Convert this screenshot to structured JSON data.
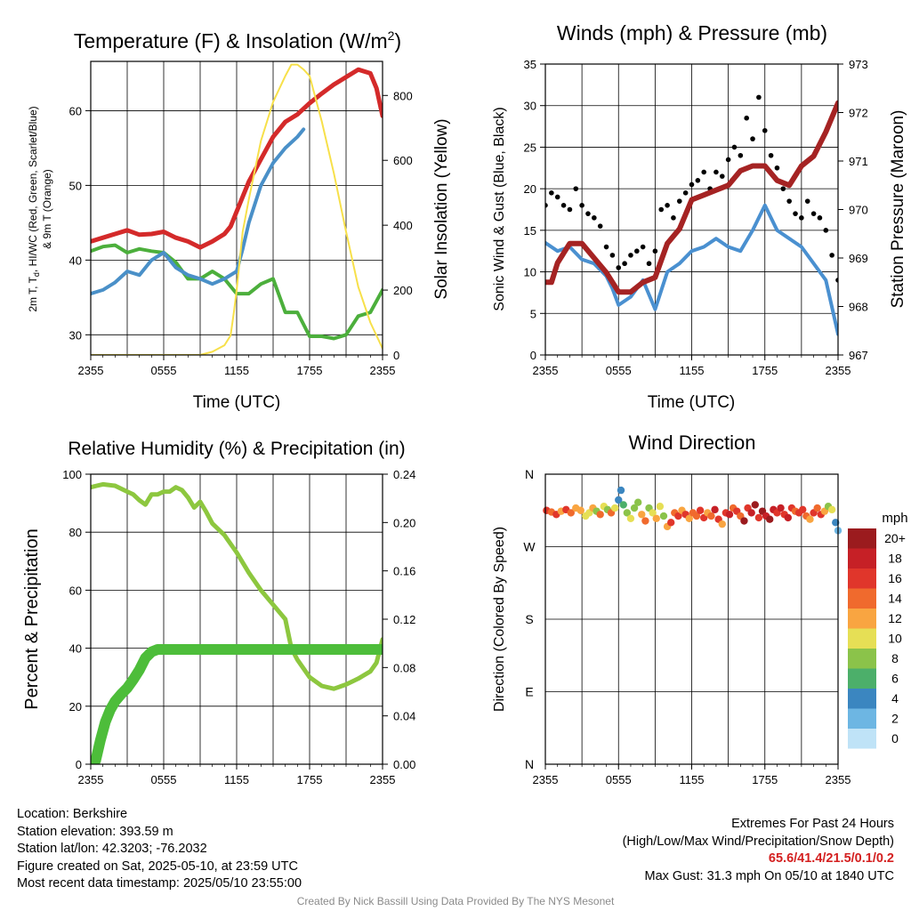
{
  "panels": {
    "temperature": {
      "title_main": "Temperature (F) & Insolation (W/m",
      "title_sup": "2",
      "title_end": ")",
      "xlabel": "Time (UTC)",
      "ylabel_left": [
        "2m T, T",
        "d",
        ", HI/WC (Red, Green, Scarlet/Blue)",
        "& 9m T (Orange)"
      ],
      "ylabel_right": "Solar Insolation (Yellow)"
    },
    "winds": {
      "title": "Winds (mph) & Pressure (mb)",
      "xlabel": "Time (UTC)",
      "ylabel_left": "Sonic Wind & Gust (Blue, Black)",
      "ylabel_right": "Station Pressure (Maroon)"
    },
    "humidity": {
      "title": "Relative Humidity (%) & Precipitation (in)",
      "ylabel_left": "Percent & Precipitation"
    },
    "direction": {
      "title": "Wind Direction",
      "ylabel_left": "Direction (Colored By Speed)",
      "colorbar_title": "mph",
      "colorbar_labels": [
        "20+",
        "18",
        "16",
        "14",
        "12",
        "10",
        "8",
        "6",
        "4",
        "2",
        "0"
      ],
      "colorbar_colors": [
        "#9b1b1e",
        "#c62026",
        "#e0362b",
        "#f06a2d",
        "#f9a541",
        "#e6df55",
        "#8bc34a",
        "#4caf6a",
        "#3b86c0",
        "#6db6e3",
        "#bfe3f7"
      ]
    }
  },
  "colors": {
    "temperature": "#d42a2a",
    "dewpoint": "#4caf3c",
    "heat_index": "#4a90c8",
    "insolation": "#f7e04a",
    "wind": "#4a90d0",
    "gust": "#000000",
    "pressure": "#a52323",
    "rh": "#8dc73f",
    "precip": "#4dbd3a"
  },
  "chart_data": [
    {
      "type": "line",
      "panel": "Temperature (F) & Insolation (W/m2)",
      "x_ticks": [
        "2355",
        "0555",
        "1155",
        "1755",
        "2355"
      ],
      "x_hours": [
        0,
        6,
        12,
        18,
        24
      ],
      "y_left_ticks": [
        30,
        40,
        50,
        60
      ],
      "y_left_lim": [
        27.3,
        66.6
      ],
      "y_right_ticks": [
        0,
        200,
        400,
        600,
        800
      ],
      "y_right_lim": [
        0,
        905
      ],
      "series": [
        {
          "key": "temperature",
          "axis": "left",
          "width": 5,
          "x": [
            0,
            1,
            2,
            3,
            4,
            5,
            6,
            7,
            8,
            9,
            10,
            11,
            11.5,
            12,
            13,
            14,
            15,
            16,
            17,
            18,
            19,
            20,
            21,
            22,
            23,
            23.5,
            24
          ],
          "y": [
            42.5,
            43,
            43.5,
            44,
            43.4,
            43.5,
            43.8,
            43,
            42.5,
            41.7,
            42.5,
            43.5,
            44.5,
            46.5,
            50.5,
            53.5,
            56.5,
            58.5,
            59.5,
            61,
            62.3,
            63.5,
            64.5,
            65.5,
            65,
            63,
            59.3
          ]
        },
        {
          "key": "dewpoint",
          "axis": "left",
          "width": 4,
          "x": [
            0,
            1,
            2,
            3,
            4,
            5,
            6,
            7,
            8,
            9,
            10,
            11,
            12,
            13,
            14,
            15,
            16,
            17,
            18,
            19,
            20,
            21,
            22,
            23,
            24
          ],
          "y": [
            41.2,
            41.8,
            42,
            41,
            41.5,
            41.2,
            41,
            39.7,
            37.5,
            37.5,
            38.5,
            37.5,
            35.5,
            35.5,
            36.8,
            37.5,
            33,
            33,
            29.8,
            29.8,
            29.5,
            30,
            32.5,
            33,
            36
          ]
        },
        {
          "key": "heat_index",
          "axis": "left",
          "width": 4,
          "x": [
            0,
            1,
            2,
            3,
            4,
            5,
            6,
            7,
            8,
            9,
            10,
            11,
            12,
            12.5,
            13,
            14,
            15,
            16,
            17,
            17.5
          ],
          "y": [
            35.5,
            36,
            37,
            38.5,
            38,
            40,
            41,
            39,
            38,
            37.5,
            36.8,
            37.5,
            38.5,
            41.5,
            45,
            50,
            53,
            55,
            56.5,
            57.5
          ]
        },
        {
          "key": "insolation",
          "axis": "right",
          "width": 2,
          "x": [
            0,
            2,
            4,
            6,
            8,
            9,
            10,
            11,
            11.5,
            11.8,
            12,
            12.5,
            13,
            14,
            15,
            16,
            16.5,
            17,
            17.5,
            18,
            19,
            20,
            21,
            22,
            23,
            24
          ],
          "y": [
            0,
            0,
            0,
            0,
            0,
            0,
            10,
            30,
            60,
            140,
            200,
            380,
            480,
            660,
            780,
            860,
            895,
            895,
            880,
            860,
            720,
            560,
            380,
            210,
            100,
            20
          ]
        }
      ]
    },
    {
      "type": "line",
      "panel": "Winds (mph) & Pressure (mb)",
      "x_ticks": [
        "2355",
        "0555",
        "1155",
        "1755",
        "2355"
      ],
      "x_hours": [
        0,
        6,
        12,
        18,
        24
      ],
      "y_left_ticks": [
        0,
        5,
        10,
        15,
        20,
        25,
        30,
        35
      ],
      "y_left_lim": [
        0,
        35
      ],
      "y_right_ticks": [
        967,
        968,
        969,
        970,
        971,
        972,
        973
      ],
      "y_right_lim": [
        967,
        973
      ],
      "series": [
        {
          "key": "wind",
          "axis": "left",
          "style": "line",
          "width": 4,
          "x": [
            0,
            1,
            2,
            3,
            4,
            5,
            5.5,
            6,
            7,
            8,
            9,
            10,
            11,
            12,
            13,
            14,
            15,
            16,
            17,
            18,
            19,
            20,
            21,
            22,
            23,
            24
          ],
          "y": [
            13.5,
            12.5,
            13,
            11.5,
            11,
            9.5,
            8,
            6,
            7,
            9,
            5.5,
            10,
            11,
            12.5,
            13,
            14,
            13,
            12.5,
            15,
            18,
            15,
            14,
            13,
            11,
            9,
            2.5
          ]
        },
        {
          "key": "gust",
          "axis": "left",
          "style": "dots",
          "x": [
            0,
            0.5,
            1,
            1.5,
            2,
            2.5,
            3,
            3.5,
            4,
            4.5,
            5,
            5.5,
            6,
            6.5,
            7,
            7.5,
            8,
            8.5,
            9,
            9.5,
            10,
            10.5,
            11,
            11.5,
            12,
            12.5,
            13,
            13.5,
            14,
            14.5,
            15,
            15.5,
            16,
            16.5,
            17,
            17.5,
            18,
            18.5,
            19,
            19.5,
            20,
            20.5,
            21,
            21.5,
            22,
            22.5,
            23,
            23.5,
            24
          ],
          "y": [
            18,
            19.5,
            19,
            18,
            17.5,
            20,
            18,
            17,
            16.5,
            15.5,
            13,
            12,
            10.5,
            11,
            12,
            12.5,
            13,
            11,
            12.5,
            17.5,
            18,
            16.5,
            18.5,
            19.5,
            20.5,
            21,
            22,
            20,
            22,
            21.5,
            23.5,
            25,
            24,
            28.5,
            26,
            31,
            27,
            24,
            22.5,
            20,
            18.5,
            17,
            16.5,
            18.5,
            17,
            16.5,
            15,
            12,
            9
          ]
        },
        {
          "key": "pressure",
          "axis": "right",
          "style": "line",
          "width": 6,
          "x": [
            0,
            0.5,
            1,
            2,
            3,
            4,
            5,
            6,
            7,
            8,
            9,
            10,
            11,
            12,
            13,
            14,
            15,
            16,
            17,
            18,
            19,
            20,
            21,
            22,
            23,
            24
          ],
          "y": [
            968.5,
            968.5,
            968.9,
            969.3,
            969.3,
            969.0,
            968.7,
            968.3,
            968.3,
            968.5,
            968.6,
            969.3,
            969.6,
            970.2,
            970.3,
            970.4,
            970.5,
            970.8,
            970.9,
            970.9,
            970.6,
            970.5,
            970.9,
            971.1,
            971.6,
            972.2
          ]
        }
      ]
    },
    {
      "type": "line",
      "panel": "Relative Humidity (%) & Precipitation (in)",
      "x_ticks": [
        "2355",
        "0555",
        "1155",
        "1755",
        "2355"
      ],
      "x_hours": [
        0,
        6,
        12,
        18,
        24
      ],
      "y_left_ticks": [
        0,
        20,
        40,
        60,
        80,
        100
      ],
      "y_left_lim": [
        0,
        100
      ],
      "y_right_ticks": [
        "0.00",
        "0.04",
        "0.08",
        "0.12",
        "0.16",
        "0.20",
        "0.24"
      ],
      "y_right_lim": [
        0,
        0.24
      ],
      "series": [
        {
          "key": "rh",
          "axis": "left",
          "width": 5,
          "x": [
            0,
            0.5,
            1,
            2,
            3,
            3.5,
            4,
            4.5,
            5,
            5.5,
            6,
            6.5,
            7,
            7.5,
            8,
            8.5,
            9,
            9.5,
            10,
            11,
            12,
            13,
            14,
            15,
            16,
            16.5,
            17,
            18,
            19,
            20,
            21,
            22,
            23,
            23.5,
            24
          ],
          "y": [
            95.5,
            96,
            96.5,
            96,
            94,
            93,
            91,
            89.5,
            93,
            93,
            94,
            94,
            95.5,
            94.5,
            92,
            88.5,
            90.5,
            87,
            83,
            79,
            73,
            66,
            60,
            55,
            50,
            40,
            36,
            30,
            27,
            26,
            27.5,
            29.5,
            32,
            35,
            43
          ]
        },
        {
          "key": "precip",
          "axis": "right",
          "width": 12,
          "x": [
            0,
            0.4,
            0.8,
            1.2,
            1.6,
            2,
            2.5,
            3,
            3.5,
            4,
            4.5,
            5,
            5.5,
            6,
            24
          ],
          "y": [
            0.0,
            0.003,
            0.02,
            0.035,
            0.045,
            0.052,
            0.058,
            0.063,
            0.07,
            0.078,
            0.088,
            0.093,
            0.095,
            0.095,
            0.095
          ]
        }
      ]
    },
    {
      "type": "scatter",
      "panel": "Wind Direction",
      "x_ticks": [
        "2355",
        "0555",
        "1155",
        "1755",
        "2355"
      ],
      "x_hours": [
        0,
        6,
        12,
        18,
        24
      ],
      "y_ticks": [
        "N",
        "W",
        "S",
        "E",
        "N"
      ],
      "y_degrees": [
        360,
        270,
        180,
        90,
        0
      ],
      "colorbar_levels": [
        20,
        18,
        16,
        14,
        12,
        10,
        8,
        6,
        4,
        2,
        0
      ],
      "points": {
        "x": [
          0.1,
          0.5,
          0.9,
          1.3,
          1.7,
          2.1,
          2.5,
          2.9,
          3.3,
          3.6,
          3.9,
          4.2,
          4.5,
          4.8,
          5.1,
          5.4,
          5.7,
          6.0,
          6.2,
          6.4,
          6.7,
          7.0,
          7.3,
          7.6,
          7.9,
          8.2,
          8.5,
          8.8,
          9.1,
          9.4,
          9.7,
          10.0,
          10.3,
          10.6,
          10.9,
          11.2,
          11.5,
          11.8,
          12.1,
          12.4,
          12.7,
          13.0,
          13.3,
          13.6,
          13.9,
          14.2,
          14.5,
          14.8,
          15.1,
          15.4,
          15.7,
          16.0,
          16.3,
          16.6,
          16.9,
          17.2,
          17.5,
          17.8,
          18.1,
          18.4,
          18.7,
          19.0,
          19.3,
          19.6,
          19.9,
          20.2,
          20.5,
          20.8,
          21.1,
          21.4,
          21.7,
          22.0,
          22.3,
          22.6,
          22.9,
          23.2,
          23.5,
          23.8,
          24.0
        ],
        "direction": [
          315,
          313,
          310,
          314,
          316,
          312,
          318,
          315,
          308,
          312,
          318,
          314,
          310,
          320,
          316,
          312,
          318,
          328,
          340,
          322,
          312,
          305,
          318,
          325,
          310,
          302,
          318,
          312,
          305,
          320,
          308,
          295,
          300,
          312,
          308,
          315,
          310,
          305,
          312,
          308,
          315,
          306,
          312,
          308,
          316,
          304,
          298,
          312,
          310,
          318,
          314,
          308,
          302,
          318,
          312,
          322,
          306,
          314,
          308,
          304,
          316,
          312,
          318,
          310,
          306,
          318,
          314,
          312,
          316,
          308,
          304,
          312,
          318,
          310,
          314,
          320,
          316,
          300,
          290
        ],
        "speed": [
          15,
          14,
          16,
          12,
          15,
          13,
          11,
          12,
          10,
          9,
          12,
          8,
          14,
          10,
          7,
          13,
          9,
          4,
          3,
          6,
          8,
          10,
          7,
          8,
          12,
          14,
          8,
          9,
          12,
          10,
          7,
          11,
          15,
          13,
          16,
          11,
          15,
          12,
          14,
          13,
          16,
          15,
          12,
          14,
          17,
          16,
          12,
          15,
          18,
          13,
          16,
          14,
          20,
          16,
          17,
          19,
          15,
          20,
          18,
          21,
          17,
          16,
          18,
          15,
          17,
          16,
          14,
          15,
          16,
          13,
          12,
          15,
          14,
          16,
          12,
          8,
          10,
          4,
          2
        ]
      }
    }
  ],
  "info_left": [
    "Location: Berkshire",
    "Station elevation: 393.59 m",
    "Station lat/lon: 42.3203; -76.2032",
    "Figure created on Sat, 2025-05-10, at 23:59 UTC",
    "Most recent data timestamp: 2025/05/10 23:55:00"
  ],
  "info_right": {
    "line1": "Extremes For Past 24 Hours",
    "line2": "(High/Low/Max Wind/Precipitation/Snow Depth)",
    "extremes": "65.6/41.4/21.5/0.1/0.2",
    "max_gust": "Max Gust: 31.3 mph On 05/10 at 1840 UTC"
  },
  "credit": "Created By Nick Bassill Using Data Provided By The NYS Mesonet"
}
